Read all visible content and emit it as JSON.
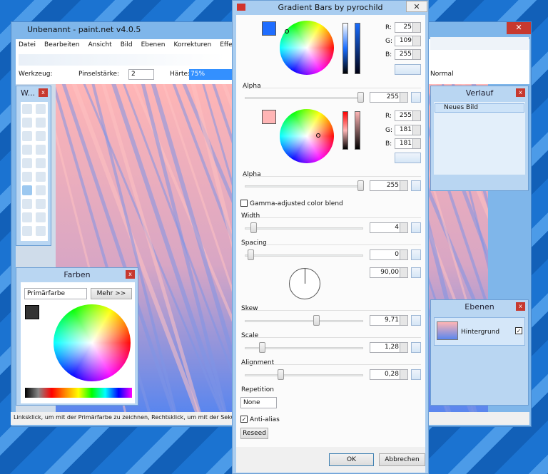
{
  "main_window": {
    "title": "Unbenannt - paint.net v4.0.5",
    "menu": [
      "Datei",
      "Bearbeiten",
      "Ansicht",
      "Bild",
      "Ebenen",
      "Korrekturen",
      "Effekte"
    ],
    "toolbar": {
      "tool_label": "Werkzeug:",
      "brush_label": "Pinselstärke:",
      "brush_value": "2",
      "hardness_label": "Härte:",
      "hardness_value": "75%",
      "blend_mode": "Normal"
    },
    "status": "Linksklick, um mit der Primärfarbe zu zeichnen, Rechtsklick, um mit der Sekundärf"
  },
  "tools_window": {
    "title": "W..."
  },
  "colors_window": {
    "title": "Farben",
    "selector": "Primärfarbe",
    "more_button": "Mehr >>"
  },
  "history_window": {
    "title": "Verlauf",
    "items": [
      "Neues Bild"
    ]
  },
  "layers_window": {
    "title": "Ebenen",
    "layers": [
      "Hintergrund"
    ]
  },
  "dialog": {
    "title": "Gradient Bars by pyrochild",
    "color1": {
      "channels": [
        {
          "label": "R:",
          "value": "25"
        },
        {
          "label": "G:",
          "value": "109"
        },
        {
          "label": "B:",
          "value": "255"
        }
      ],
      "alpha_label": "Alpha",
      "alpha": "255"
    },
    "color2": {
      "channels": [
        {
          "label": "R:",
          "value": "255"
        },
        {
          "label": "G:",
          "value": "181"
        },
        {
          "label": "B:",
          "value": "181"
        }
      ],
      "alpha_label": "Alpha",
      "alpha": "255"
    },
    "gamma": "Gamma-adjusted color blend",
    "controls": [
      {
        "label": "Width",
        "value": "4"
      },
      {
        "label": "Spacing",
        "value": "0"
      },
      {
        "label": "Skew",
        "value": "9,71"
      },
      {
        "label": "Scale",
        "value": "1,28"
      },
      {
        "label": "Alignment",
        "value": "0,28"
      }
    ],
    "angle": "90,00",
    "repetition_label": "Repetition",
    "repetition": "None",
    "antialias": "Anti-alias",
    "reseed": "Reseed",
    "ok": "OK",
    "cancel": "Abbrechen"
  }
}
